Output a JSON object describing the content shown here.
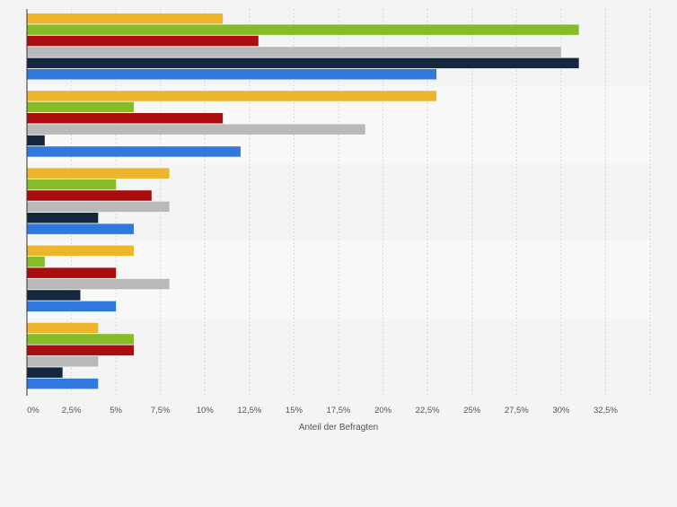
{
  "chart_data": {
    "type": "bar",
    "orientation": "horizontal",
    "title": "",
    "xlabel": "Anteil der Befragten",
    "ylabel": "",
    "xlim": [
      0,
      35
    ],
    "grid": true,
    "tick_values": [
      0,
      2.5,
      5,
      7.5,
      10,
      12.5,
      15,
      17.5,
      20,
      22.5,
      25,
      27.5,
      30,
      32.5
    ],
    "tick_labels": [
      "0%",
      "2,5%",
      "5%",
      "7,5%",
      "10%",
      "12,5%",
      "15%",
      "17,5%",
      "20%",
      "22,5%",
      "25%",
      "27,5%",
      "30%",
      "32,5%"
    ],
    "categories": [
      "",
      "",
      "",
      "",
      ""
    ],
    "series": [
      {
        "name": "",
        "color": "#ecb52b",
        "values": [
          11,
          23,
          8,
          6,
          4
        ]
      },
      {
        "name": "",
        "color": "#84bc2a",
        "values": [
          31,
          6,
          5,
          1,
          6
        ]
      },
      {
        "name": "",
        "color": "#a90d0d",
        "values": [
          13,
          11,
          7,
          5,
          6
        ]
      },
      {
        "name": "",
        "color": "#b9b9b9",
        "values": [
          30,
          19,
          8,
          8,
          4
        ]
      },
      {
        "name": "",
        "color": "#14273f",
        "values": [
          31,
          1,
          4,
          3,
          2
        ]
      },
      {
        "name": "",
        "color": "#2f79dc",
        "values": [
          23,
          12,
          6,
          5,
          4
        ]
      }
    ]
  }
}
